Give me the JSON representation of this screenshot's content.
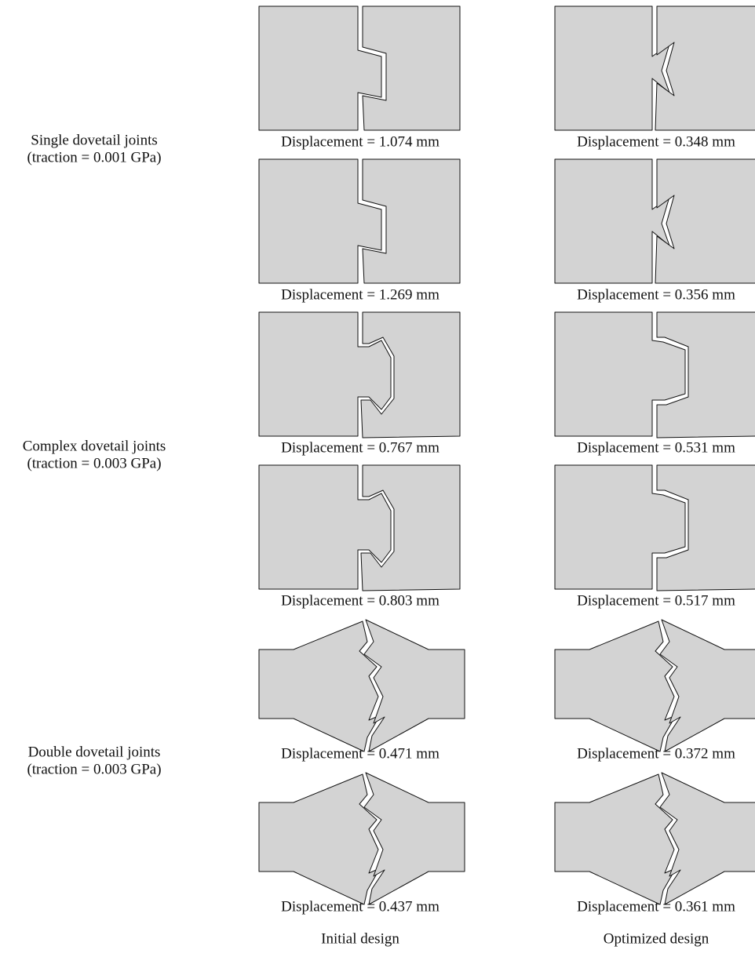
{
  "rows": [
    {
      "label": [
        "Single dovetail joints",
        "(traction = 0.001 GPa)"
      ],
      "panels": [
        {
          "initial": "Displacement = 1.074 mm",
          "optimized": "Displacement = 0.348 mm"
        },
        {
          "initial": "Displacement = 1.269 mm",
          "optimized": "Displacement = 0.356 mm"
        }
      ]
    },
    {
      "label": [
        "Complex dovetail joints",
        "(traction = 0.003 GPa)"
      ],
      "panels": [
        {
          "initial": "Displacement = 0.767 mm",
          "optimized": "Displacement = 0.531 mm"
        },
        {
          "initial": "Displacement = 0.803 mm",
          "optimized": "Displacement = 0.517 mm"
        }
      ]
    },
    {
      "label": [
        "Double dovetail joints",
        "(traction = 0.003 GPa)"
      ],
      "panels": [
        {
          "initial": "Displacement = 0.471 mm",
          "optimized": "Displacement = 0.372 mm"
        },
        {
          "initial": "Displacement = 0.437 mm",
          "optimized": "Displacement = 0.361 mm"
        }
      ]
    }
  ],
  "columns": [
    "Initial design",
    "Optimized design"
  ]
}
